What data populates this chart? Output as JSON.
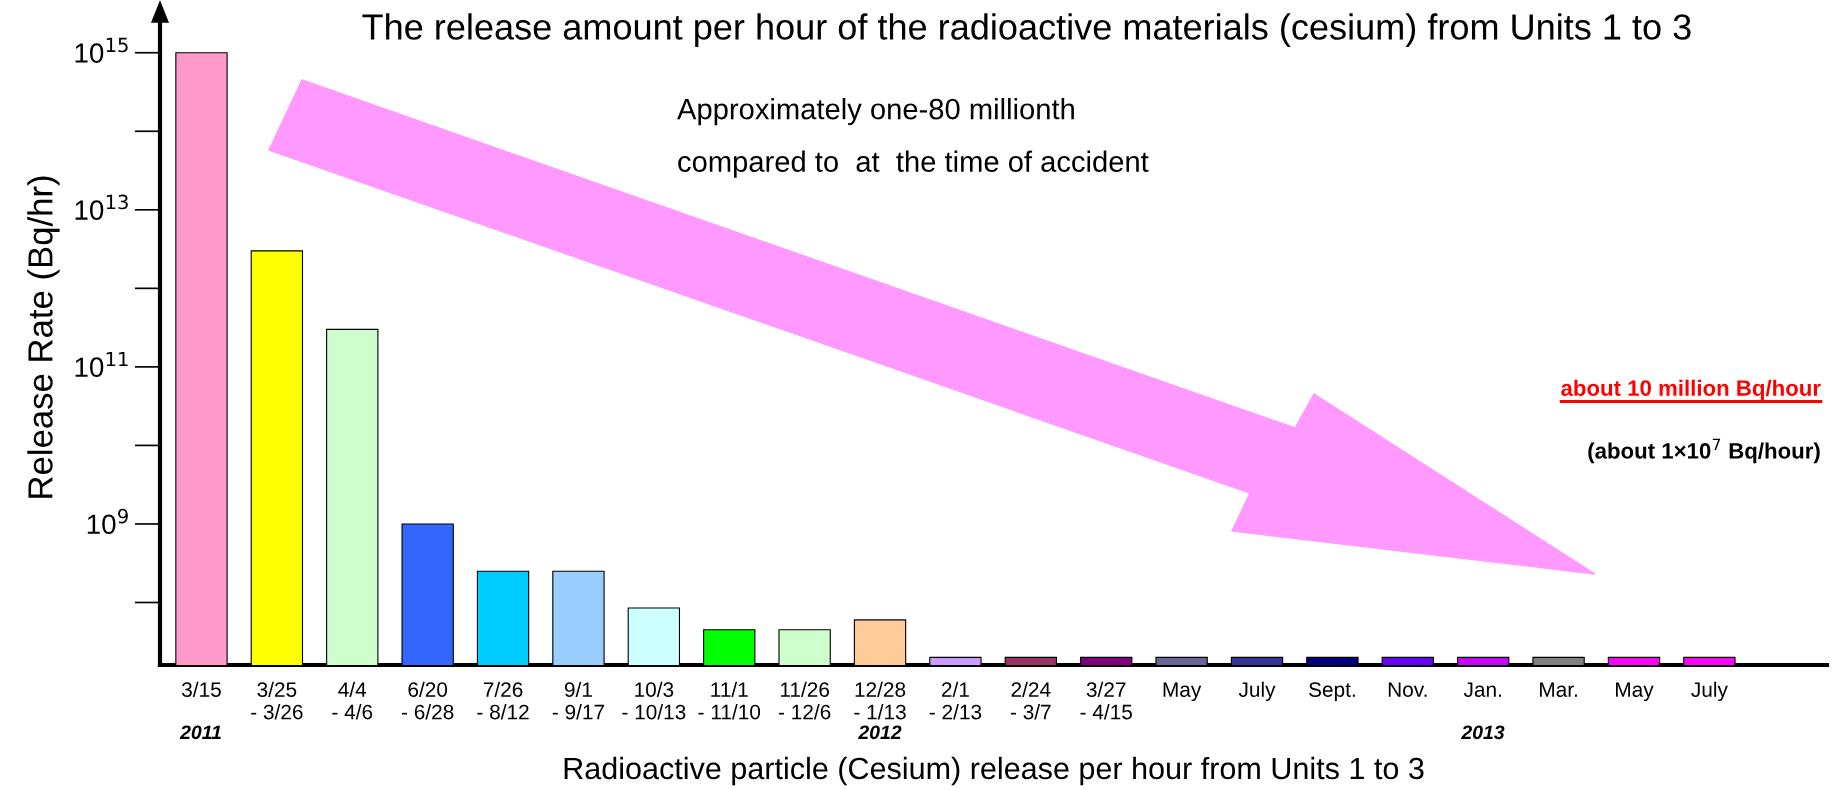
{
  "chart_data": {
    "type": "bar",
    "title": "The release amount per hour of the radioactive materials (cesium) from Units 1 to 3",
    "xlabel": "Radioactive particle (Cesium) release per hour from Units 1 to 3",
    "ylabel": "Release Rate (Bq/hr)",
    "categories": [
      "3/15",
      "3/25\n- 3/26",
      "4/4\n- 4/6",
      "6/20\n- 6/28",
      "7/26\n- 8/12",
      "9/1\n- 9/17",
      "10/3\n- 10/13",
      "11/1\n- 11/10",
      "11/26\n- 12/6",
      "12/28\n- 1/13",
      "2/1\n- 2/13",
      "2/24\n- 3/7",
      "3/27\n- 4/15",
      "May",
      "July",
      "Sept.",
      "Nov.",
      "Jan.",
      "Mar.",
      "May",
      "July"
    ],
    "values": [
      1000000000000000.0,
      3000000000000.0,
      300000000000.0,
      1000000000.0,
      250000000.0,
      250000000.0,
      85000000.0,
      45000000.0,
      45000000.0,
      60000000.0,
      20000000.0,
      20000000.0,
      20000000.0,
      20000000.0,
      20000000.0,
      20000000.0,
      20000000.0,
      20000000.0,
      20000000.0,
      20000000.0,
      20000000.0
    ],
    "colors": [
      "#ff99cc",
      "#ffff00",
      "#ccffcc",
      "#3366ff",
      "#00ccff",
      "#99ccff",
      "#ccffff",
      "#00ff00",
      "#ccffcc",
      "#ffcc99",
      "#cc99ff",
      "#993366",
      "#800080",
      "#666699",
      "#333399",
      "#000080",
      "#6600ff",
      "#cc00ff",
      "#808080",
      "#ff00ff",
      "#ff00ff"
    ],
    "log": true,
    "ylim": [
      16000000.0,
      3500000000000000.0
    ],
    "yticks": [
      {
        "value": 1000000000.0,
        "label": "10$^{9}$"
      },
      {
        "value": 100000000000.0,
        "label": "10$^{11}$"
      },
      {
        "value": 10000000000000.0,
        "label": "10$^{13}$"
      },
      {
        "value": 1000000000000000.0,
        "label": "10$^{15}$"
      }
    ],
    "annotations": [
      "2011",
      "2012",
      "2013",
      "Approximately one-80 millionth\ncompared to  at  the time of accident",
      "about 10 million Bq/hour",
      "(about 1×10$^{7}$ Bq/hour)"
    ]
  }
}
